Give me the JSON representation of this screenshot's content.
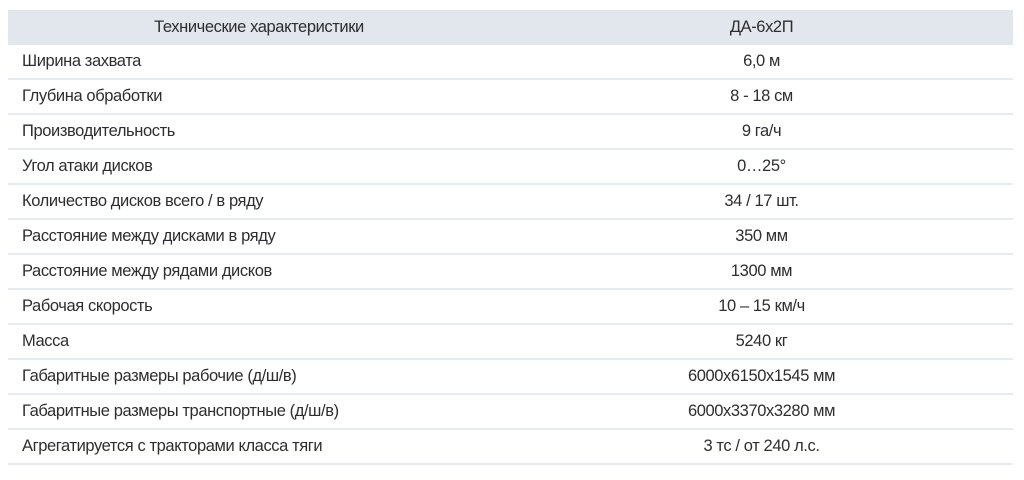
{
  "table": {
    "headers": [
      "Технические характеристики",
      "ДА-6х2П"
    ],
    "rows": [
      [
        "Ширина захвата",
        "6,0 м"
      ],
      [
        "Глубина обработки",
        "8 - 18 см"
      ],
      [
        "Производительность",
        "9 га/ч"
      ],
      [
        "Угол атаки дисков",
        "0…25°"
      ],
      [
        "Количество дисков всего / в ряду",
        "34 / 17 шт."
      ],
      [
        "Расстояние между дисками в ряду",
        "350 мм"
      ],
      [
        "Расстояние между рядами дисков",
        "1300 мм"
      ],
      [
        "Рабочая скорость",
        "10 – 15 км/ч"
      ],
      [
        "Масса",
        "5240 кг"
      ],
      [
        "Габаритные размеры рабочие (д/ш/в)",
        "6000х6150х1545 мм"
      ],
      [
        "Габаритные размеры транспортные (д/ш/в)",
        "6000х3370х3280 мм"
      ],
      [
        "Агрегатируется с тракторами класса тяги",
        "3 тс / от 240 л.с."
      ]
    ]
  }
}
